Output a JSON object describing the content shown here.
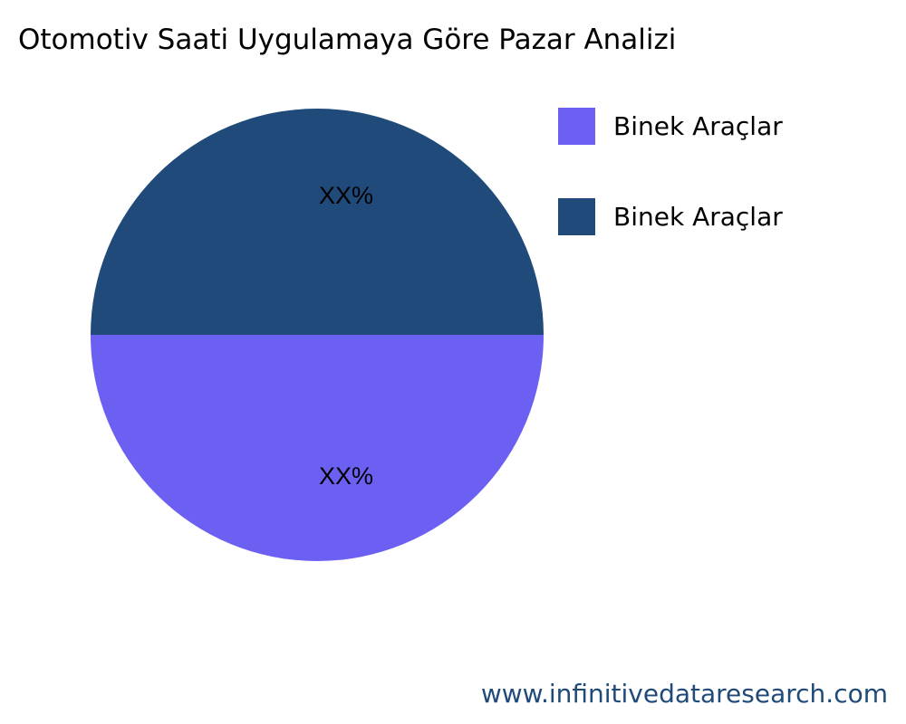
{
  "chart_data": {
    "type": "pie",
    "title": "Otomotiv Saati Uygulamaya Göre Pazar Analizi",
    "slices": [
      {
        "name": "Binek Araçlar",
        "value": 50,
        "label": "XX%",
        "color": "#6c60f2"
      },
      {
        "name": "Binek Araçlar",
        "value": 50,
        "label": "XX%",
        "color": "#1f4a7a"
      }
    ],
    "legend_position": "right"
  },
  "footer": "www.infinitivedataresearch.com"
}
